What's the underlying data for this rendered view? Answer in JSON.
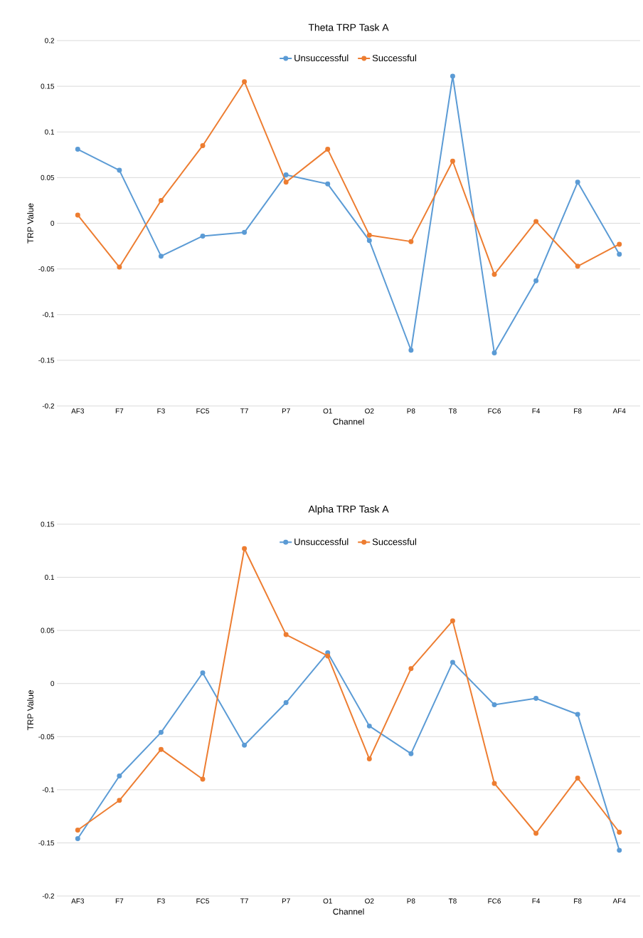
{
  "chart_data": [
    {
      "type": "line",
      "title": "Theta TRP Task A",
      "xlabel": "Channel",
      "ylabel": "TRP Value",
      "categories": [
        "AF3",
        "F7",
        "F3",
        "FC5",
        "T7",
        "P7",
        "O1",
        "O2",
        "P8",
        "T8",
        "FC6",
        "F4",
        "F8",
        "AF4"
      ],
      "series": [
        {
          "name": "Unsuccessful",
          "color": "#5b9bd5",
          "values": [
            0.081,
            0.058,
            -0.036,
            -0.014,
            -0.01,
            0.053,
            0.043,
            -0.019,
            -0.139,
            0.161,
            -0.142,
            -0.063,
            0.045,
            -0.034
          ]
        },
        {
          "name": "Successful",
          "color": "#ed7d31",
          "values": [
            0.009,
            -0.048,
            0.025,
            0.085,
            0.155,
            0.045,
            0.081,
            -0.013,
            -0.02,
            0.068,
            -0.056,
            0.002,
            -0.047,
            -0.023
          ]
        }
      ],
      "ylim": [
        -0.2,
        0.2
      ],
      "yticks": [
        -0.2,
        -0.15,
        -0.1,
        -0.05,
        0,
        0.05,
        0.1,
        0.15,
        0.2
      ],
      "grid": "y",
      "legend": "top",
      "marker": "circle",
      "line_style": "solid"
    },
    {
      "type": "line",
      "title": "Alpha TRP Task A",
      "xlabel": "Channel",
      "ylabel": "TRP Value",
      "categories": [
        "AF3",
        "F7",
        "F3",
        "FC5",
        "T7",
        "P7",
        "O1",
        "O2",
        "P8",
        "T8",
        "FC6",
        "F4",
        "F8",
        "AF4"
      ],
      "series": [
        {
          "name": "Unsuccessful",
          "color": "#5b9bd5",
          "values": [
            -0.146,
            -0.087,
            -0.046,
            0.01,
            -0.058,
            -0.018,
            0.029,
            -0.04,
            -0.066,
            0.02,
            -0.02,
            -0.014,
            -0.029,
            -0.157
          ]
        },
        {
          "name": "Successful",
          "color": "#ed7d31",
          "values": [
            -0.138,
            -0.11,
            -0.062,
            -0.09,
            0.127,
            0.046,
            0.026,
            -0.071,
            0.014,
            0.059,
            -0.094,
            -0.141,
            -0.089,
            -0.14
          ]
        }
      ],
      "ylim": [
        -0.2,
        0.15
      ],
      "yticks": [
        -0.2,
        -0.15,
        -0.1,
        -0.05,
        0,
        0.05,
        0.1,
        0.15
      ],
      "grid": "y",
      "legend": "top",
      "marker": "circle",
      "line_style": "solid"
    }
  ]
}
